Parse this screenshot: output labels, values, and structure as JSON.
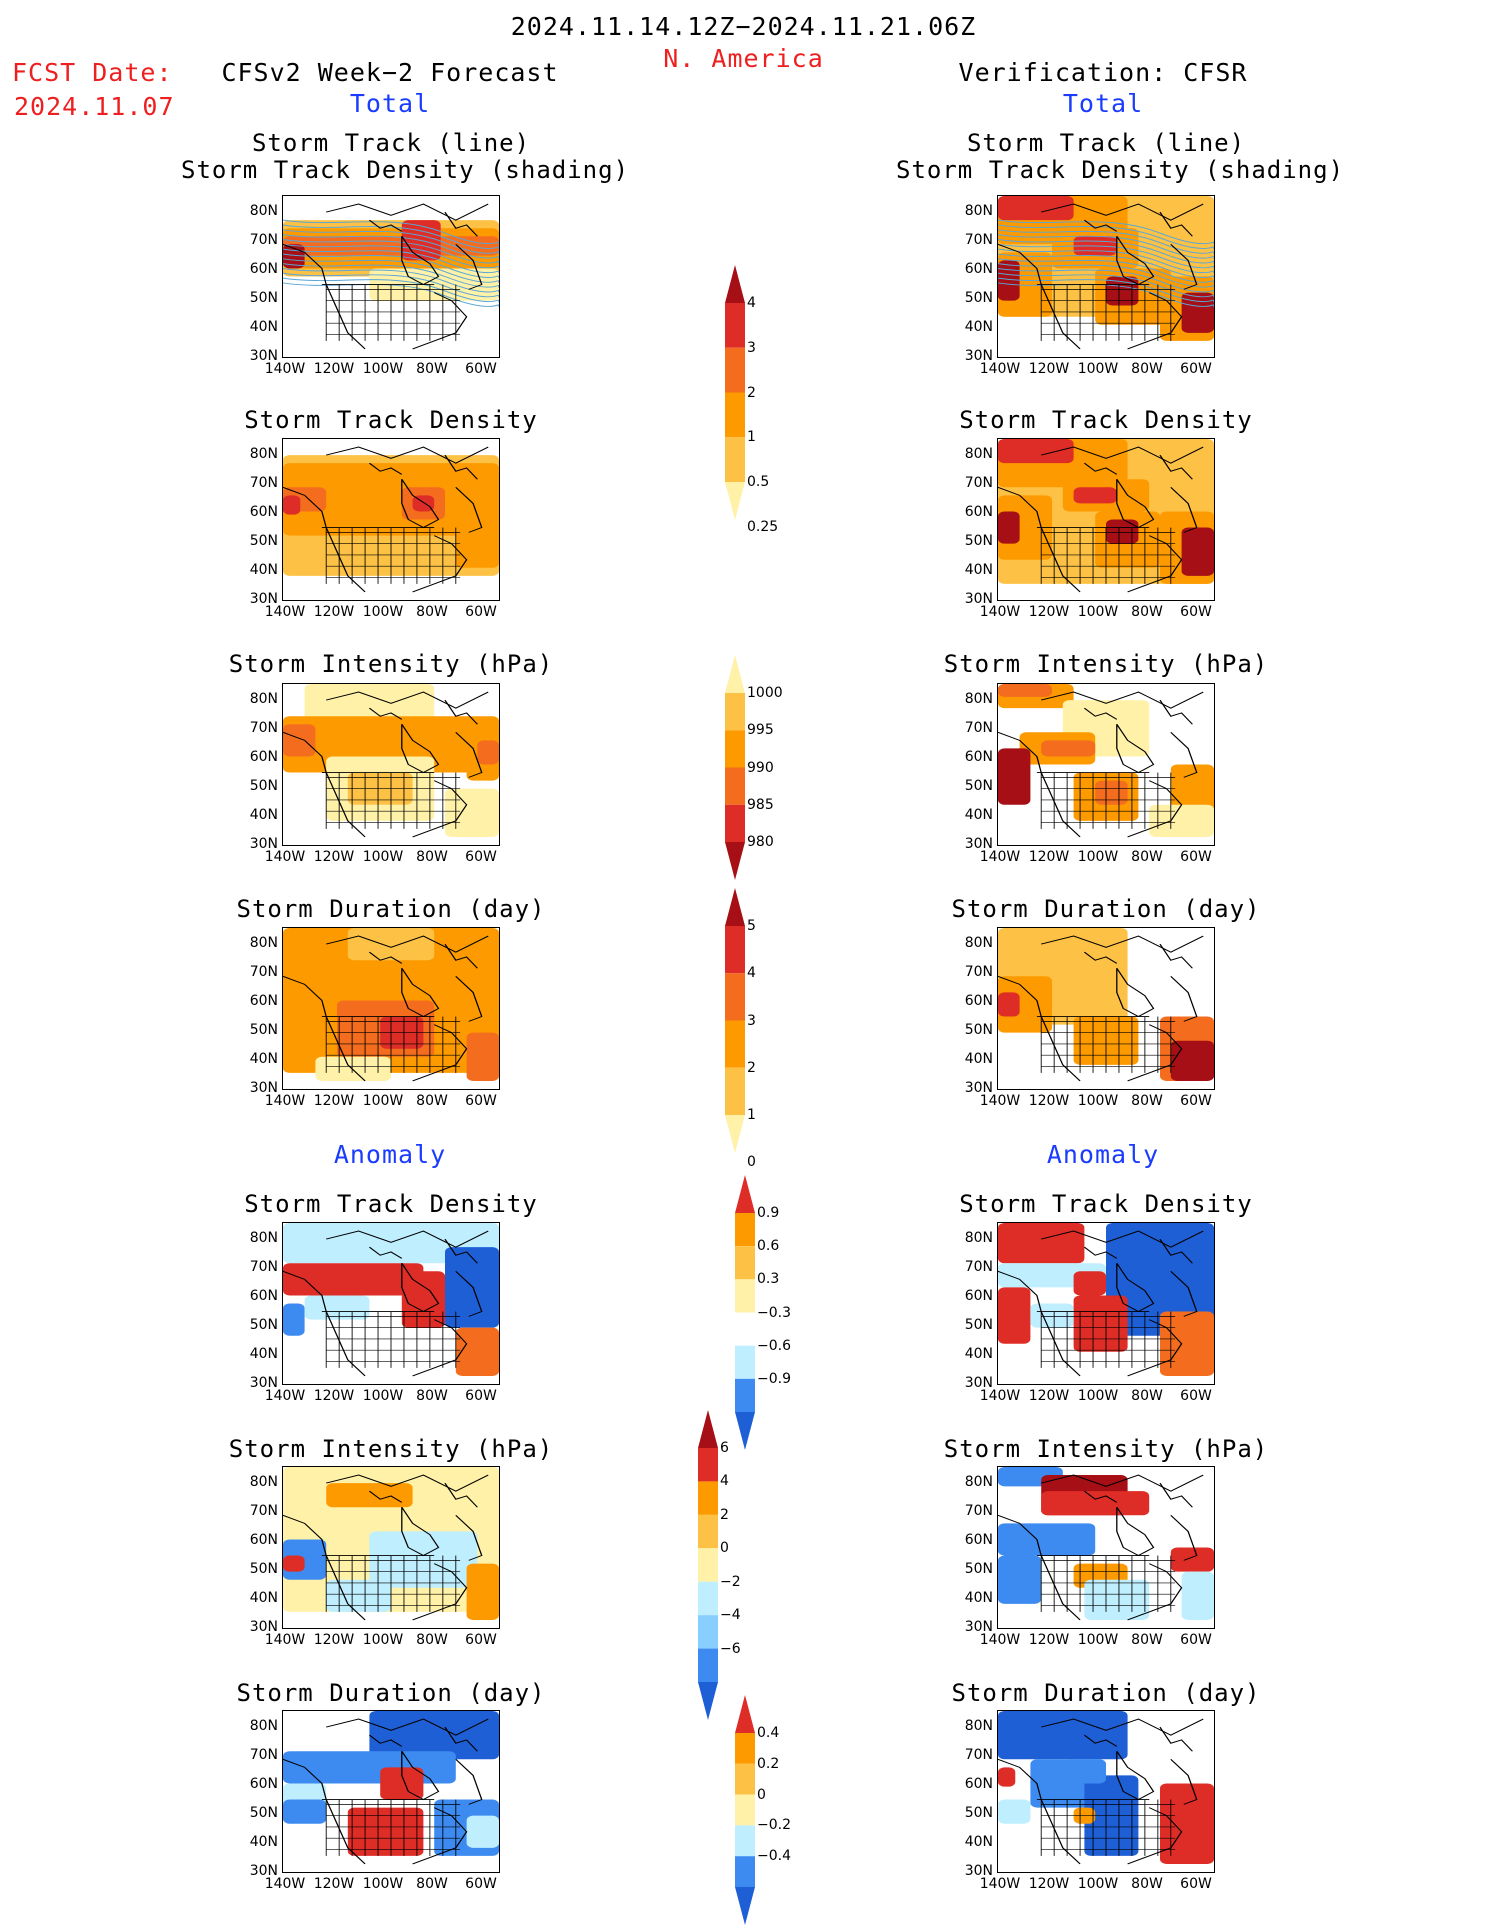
{
  "header": {
    "date_range": "2024.11.14.12Z−2024.11.21.06Z",
    "region": "N. America",
    "fcst_date_label": "FCST Date:",
    "fcst_date_value": "2024.11.07",
    "left_title": "CFSv2 Week−2 Forecast",
    "right_title": "Verification: CFSR"
  },
  "sections": {
    "total": "Total",
    "anomaly": "Anomaly"
  },
  "panel_titles": {
    "st_line_1": "Storm Track (line)",
    "st_line_2": "Storm Track Density (shading)",
    "density": "Storm Track Density",
    "intensity": "Storm Intensity (hPa)",
    "duration": "Storm Duration (day)"
  },
  "axes": {
    "lat_labels": [
      "80N",
      "70N",
      "60N",
      "50N",
      "40N",
      "30N"
    ],
    "lon_labels": [
      "140W",
      "120W",
      "100W",
      "80W",
      "60W"
    ]
  },
  "colorbars": {
    "density_total": [
      "4",
      "3",
      "2",
      "1",
      "0.5",
      "0.25"
    ],
    "intensity_total": [
      "1000",
      "995",
      "990",
      "985",
      "980"
    ],
    "duration_total": [
      "5",
      "4",
      "3",
      "2",
      "1",
      "0"
    ],
    "density_anom": [
      "0.9",
      "0.6",
      "0.3",
      "−0.3",
      "−0.6",
      "−0.9"
    ],
    "intensity_anom": [
      "6",
      "4",
      "2",
      "0",
      "−2",
      "−4",
      "−6"
    ],
    "duration_anom": [
      "0.4",
      "0.2",
      "0",
      "−0.2",
      "−0.4"
    ]
  },
  "colors": {
    "dark_red": "#a50f15",
    "red": "#de2d26",
    "orange_red": "#f46d1e",
    "orange": "#fd9a00",
    "light_orange": "#fdc245",
    "pale_yellow": "#fff2a8",
    "light_blue": "#bfeeff",
    "mid_blue": "#3d8bf0",
    "dark_blue": "#1f5fd6",
    "track_line": "#5aa6d6"
  },
  "panels": {
    "left_st_line": [
      [
        "light_orange",
        0,
        0.15,
        1,
        0.35
      ],
      [
        "orange",
        0,
        0.2,
        1,
        0.25
      ],
      [
        "orange_red",
        0,
        0.25,
        1,
        0.12
      ],
      [
        "red",
        0.55,
        0.15,
        0.18,
        0.25
      ],
      [
        "dark_red",
        0,
        0.3,
        0.1,
        0.15
      ],
      [
        "pale_yellow",
        0.4,
        0.45,
        0.6,
        0.2
      ]
    ],
    "right_st_line": [
      [
        "light_orange",
        0,
        0,
        1,
        0.75
      ],
      [
        "orange",
        0,
        0,
        0.6,
        0.3
      ],
      [
        "red",
        0,
        0,
        0.35,
        0.15
      ],
      [
        "orange",
        0.25,
        0.2,
        0.4,
        0.25
      ],
      [
        "red",
        0.35,
        0.25,
        0.2,
        0.12
      ],
      [
        "orange",
        0,
        0.35,
        0.25,
        0.4
      ],
      [
        "dark_red",
        0,
        0.4,
        0.1,
        0.25
      ],
      [
        "orange",
        0.45,
        0.45,
        0.35,
        0.35
      ],
      [
        "dark_red",
        0.5,
        0.5,
        0.15,
        0.18
      ],
      [
        "orange",
        0.75,
        0.5,
        0.25,
        0.4
      ],
      [
        "dark_red",
        0.85,
        0.6,
        0.15,
        0.25
      ]
    ],
    "left_density": [
      [
        "light_orange",
        0,
        0.1,
        1,
        0.75
      ],
      [
        "orange",
        0,
        0.15,
        1,
        0.45
      ],
      [
        "orange_red",
        0,
        0.3,
        0.2,
        0.15
      ],
      [
        "red",
        0,
        0.35,
        0.08,
        0.12
      ],
      [
        "orange_red",
        0.55,
        0.3,
        0.2,
        0.2
      ],
      [
        "red",
        0.6,
        0.35,
        0.1,
        0.1
      ],
      [
        "orange",
        0.8,
        0.5,
        0.2,
        0.3
      ]
    ],
    "right_density": [
      [
        "light_orange",
        0,
        0,
        1,
        0.9
      ],
      [
        "orange",
        0,
        0,
        0.6,
        0.3
      ],
      [
        "red",
        0,
        0,
        0.35,
        0.15
      ],
      [
        "orange",
        0.3,
        0.25,
        0.4,
        0.2
      ],
      [
        "red",
        0.35,
        0.3,
        0.2,
        0.1
      ],
      [
        "orange",
        0,
        0.35,
        0.25,
        0.4
      ],
      [
        "dark_red",
        0,
        0.45,
        0.1,
        0.2
      ],
      [
        "orange",
        0.45,
        0.45,
        0.3,
        0.35
      ],
      [
        "dark_red",
        0.5,
        0.5,
        0.15,
        0.15
      ],
      [
        "orange",
        0.75,
        0.45,
        0.25,
        0.45
      ],
      [
        "dark_red",
        0.85,
        0.55,
        0.15,
        0.3
      ]
    ],
    "left_intensity": [
      [
        "pale_yellow",
        0.1,
        0,
        0.6,
        0.25
      ],
      [
        "orange",
        0,
        0.2,
        1,
        0.35
      ],
      [
        "orange_red",
        0,
        0.25,
        0.15,
        0.2
      ],
      [
        "pale_yellow",
        0.2,
        0.45,
        0.5,
        0.4
      ],
      [
        "orange",
        0.85,
        0.3,
        0.15,
        0.3
      ],
      [
        "orange_red",
        0.9,
        0.35,
        0.1,
        0.15
      ],
      [
        "pale_yellow",
        0.75,
        0.65,
        0.25,
        0.3
      ],
      [
        "light_orange",
        0.3,
        0.55,
        0.3,
        0.2
      ]
    ],
    "right_intensity": [
      [
        "orange",
        0,
        0,
        0.35,
        0.15
      ],
      [
        "orange_red",
        0,
        0,
        0.25,
        0.08
      ],
      [
        "pale_yellow",
        0.3,
        0.1,
        0.4,
        0.35
      ],
      [
        "orange",
        0.1,
        0.3,
        0.35,
        0.2
      ],
      [
        "orange_red",
        0.2,
        0.35,
        0.25,
        0.1
      ],
      [
        "dark_red",
        0,
        0.4,
        0.15,
        0.35
      ],
      [
        "orange",
        0.35,
        0.55,
        0.3,
        0.3
      ],
      [
        "orange_red",
        0.45,
        0.6,
        0.15,
        0.15
      ],
      [
        "orange",
        0.8,
        0.5,
        0.2,
        0.3
      ],
      [
        "pale_yellow",
        0.7,
        0.75,
        0.3,
        0.2
      ]
    ],
    "left_duration": [
      [
        "orange",
        0,
        0,
        1,
        0.9
      ],
      [
        "light_orange",
        0.3,
        0,
        0.4,
        0.2
      ],
      [
        "orange_red",
        0.25,
        0.45,
        0.45,
        0.35
      ],
      [
        "red",
        0.45,
        0.55,
        0.2,
        0.2
      ],
      [
        "orange_red",
        0.85,
        0.65,
        0.15,
        0.3
      ],
      [
        "pale_yellow",
        0.15,
        0.8,
        0.35,
        0.15
      ]
    ],
    "right_duration": [
      [
        "light_orange",
        0,
        0,
        0.6,
        0.6
      ],
      [
        "orange",
        0,
        0.3,
        0.25,
        0.35
      ],
      [
        "red",
        0,
        0.4,
        0.1,
        0.15
      ],
      [
        "orange",
        0.35,
        0.55,
        0.3,
        0.3
      ],
      [
        "orange_red",
        0.75,
        0.55,
        0.25,
        0.4
      ],
      [
        "dark_red",
        0.8,
        0.7,
        0.2,
        0.25
      ]
    ],
    "left_density_anom": [
      [
        "light_blue",
        0,
        0,
        1,
        0.25
      ],
      [
        "red",
        0,
        0.25,
        0.65,
        0.2
      ],
      [
        "red",
        0.55,
        0.3,
        0.2,
        0.35
      ],
      [
        "dark_blue",
        0.75,
        0.15,
        0.25,
        0.5
      ],
      [
        "mid_blue",
        0,
        0.5,
        0.1,
        0.2
      ],
      [
        "orange_red",
        0.8,
        0.65,
        0.2,
        0.3
      ],
      [
        "light_blue",
        0.1,
        0.45,
        0.3,
        0.15
      ]
    ],
    "right_density_anom": [
      [
        "red",
        0,
        0,
        0.4,
        0.25
      ],
      [
        "dark_blue",
        0.5,
        0,
        0.5,
        0.7
      ],
      [
        "light_blue",
        0,
        0.25,
        0.5,
        0.15
      ],
      [
        "red",
        0,
        0.4,
        0.15,
        0.35
      ],
      [
        "red",
        0.35,
        0.3,
        0.15,
        0.15
      ],
      [
        "red",
        0.35,
        0.45,
        0.25,
        0.35
      ],
      [
        "orange_red",
        0.75,
        0.55,
        0.25,
        0.4
      ],
      [
        "light_blue",
        0.15,
        0.5,
        0.2,
        0.15
      ]
    ],
    "left_intensity_anom": [
      [
        "pale_yellow",
        0,
        0,
        1,
        0.9
      ],
      [
        "orange",
        0.2,
        0.1,
        0.4,
        0.15
      ],
      [
        "mid_blue",
        0,
        0.45,
        0.2,
        0.25
      ],
      [
        "light_blue",
        0.4,
        0.4,
        0.5,
        0.35
      ],
      [
        "orange",
        0.85,
        0.6,
        0.15,
        0.35
      ],
      [
        "red",
        0,
        0.55,
        0.1,
        0.1
      ],
      [
        "light_blue",
        0.2,
        0.7,
        0.3,
        0.2
      ]
    ],
    "right_intensity_anom": [
      [
        "mid_blue",
        0,
        0,
        0.3,
        0.12
      ],
      [
        "dark_red",
        0.2,
        0.05,
        0.4,
        0.25
      ],
      [
        "red",
        0.2,
        0.15,
        0.5,
        0.15
      ],
      [
        "mid_blue",
        0,
        0.35,
        0.45,
        0.2
      ],
      [
        "mid_blue",
        0,
        0.55,
        0.2,
        0.3
      ],
      [
        "orange",
        0.35,
        0.6,
        0.25,
        0.15
      ],
      [
        "light_blue",
        0.4,
        0.7,
        0.3,
        0.25
      ],
      [
        "red",
        0.8,
        0.5,
        0.2,
        0.15
      ],
      [
        "light_blue",
        0.85,
        0.65,
        0.15,
        0.3
      ]
    ],
    "left_duration_anom": [
      [
        "dark_blue",
        0.4,
        0,
        0.6,
        0.3
      ],
      [
        "mid_blue",
        0,
        0.25,
        0.8,
        0.2
      ],
      [
        "light_blue",
        0,
        0.45,
        0.2,
        0.15
      ],
      [
        "mid_blue",
        0,
        0.55,
        0.2,
        0.15
      ],
      [
        "red",
        0.45,
        0.35,
        0.2,
        0.2
      ],
      [
        "red",
        0.3,
        0.6,
        0.35,
        0.3
      ],
      [
        "mid_blue",
        0.7,
        0.55,
        0.3,
        0.35
      ],
      [
        "light_blue",
        0.85,
        0.65,
        0.15,
        0.2
      ]
    ],
    "right_duration_anom": [
      [
        "dark_blue",
        0,
        0,
        0.6,
        0.3
      ],
      [
        "mid_blue",
        0.15,
        0.3,
        0.35,
        0.3
      ],
      [
        "red",
        0,
        0.35,
        0.08,
        0.12
      ],
      [
        "light_blue",
        0,
        0.55,
        0.15,
        0.15
      ],
      [
        "dark_blue",
        0.4,
        0.4,
        0.25,
        0.5
      ],
      [
        "orange",
        0.35,
        0.6,
        0.1,
        0.1
      ],
      [
        "red",
        0.75,
        0.45,
        0.25,
        0.5
      ],
      [
        "mid_blue",
        0.3,
        0.3,
        0.2,
        0.15
      ]
    ]
  }
}
